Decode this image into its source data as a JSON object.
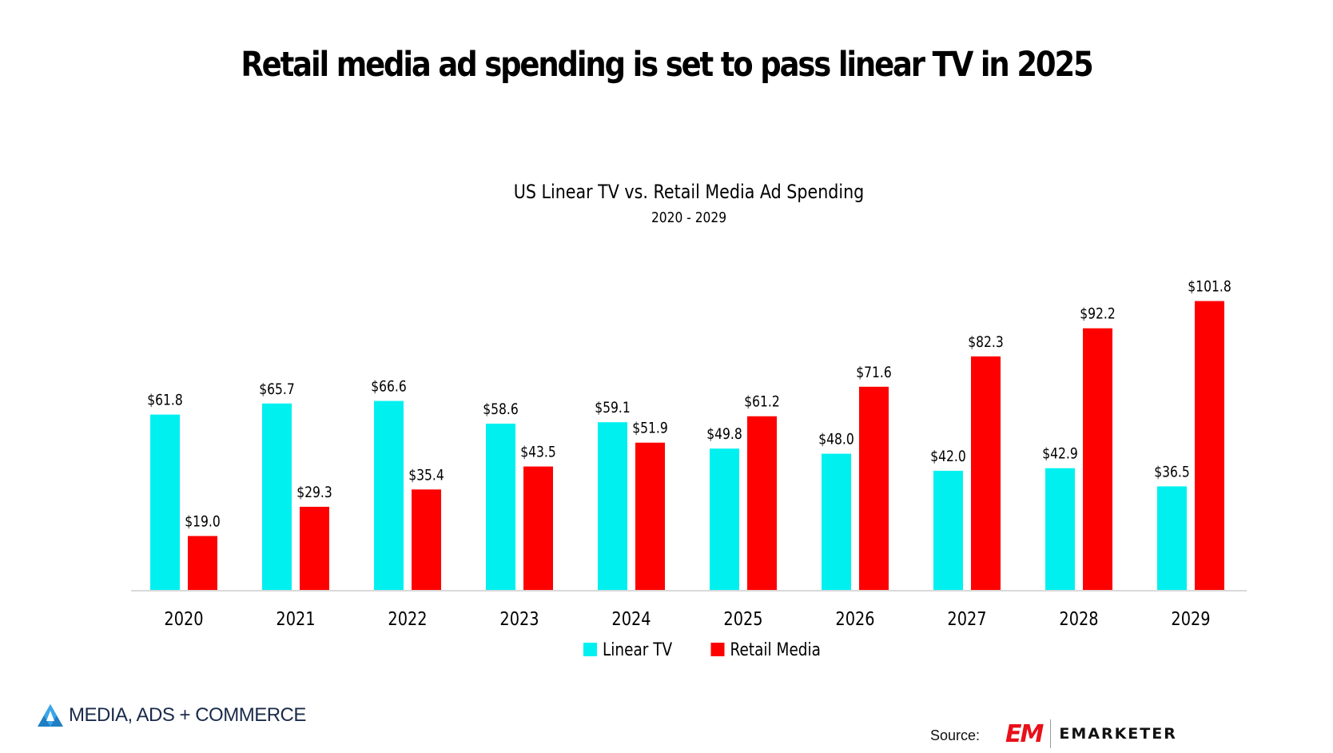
{
  "header": {
    "title": "Retail media ad spending is set to pass linear TV in 2025"
  },
  "chart_data": {
    "type": "bar",
    "title": "US Linear TV vs. Retail Media Ad Spending",
    "subtitle": "2020 - 2029",
    "xlabel": "",
    "ylabel": "",
    "ylim": [
      0,
      110
    ],
    "grid": false,
    "legend_position": "bottom-center",
    "categories": [
      "2020",
      "2021",
      "2022",
      "2023",
      "2024",
      "2025",
      "2026",
      "2027",
      "2028",
      "2029"
    ],
    "series": [
      {
        "name": "Linear TV",
        "color": "#00f0f0",
        "values": [
          61.8,
          65.7,
          66.6,
          58.6,
          59.1,
          49.8,
          48.0,
          42.0,
          42.9,
          36.5
        ],
        "labels": [
          "$61.8",
          "$65.7",
          "$66.6",
          "$58.6",
          "$59.1",
          "$49.8",
          "$48.0",
          "$42.0",
          "$42.9",
          "$36.5"
        ]
      },
      {
        "name": "Retail Media",
        "color": "#ff0000",
        "values": [
          19.0,
          29.3,
          35.4,
          43.5,
          51.9,
          61.2,
          71.6,
          82.3,
          92.2,
          101.8
        ],
        "labels": [
          "$19.0",
          "$29.3",
          "$35.4",
          "$43.5",
          "$51.9",
          "$61.2",
          "$71.6",
          "$82.3",
          "$92.2",
          "$101.8"
        ]
      }
    ]
  },
  "footer": {
    "brand_left": "MEDIA, ADS + COMMERCE",
    "source_label": "Source:",
    "logo_mark": "EM",
    "logo_word": "EMARKETER",
    "brand_icon": "triangle-logo-icon"
  }
}
